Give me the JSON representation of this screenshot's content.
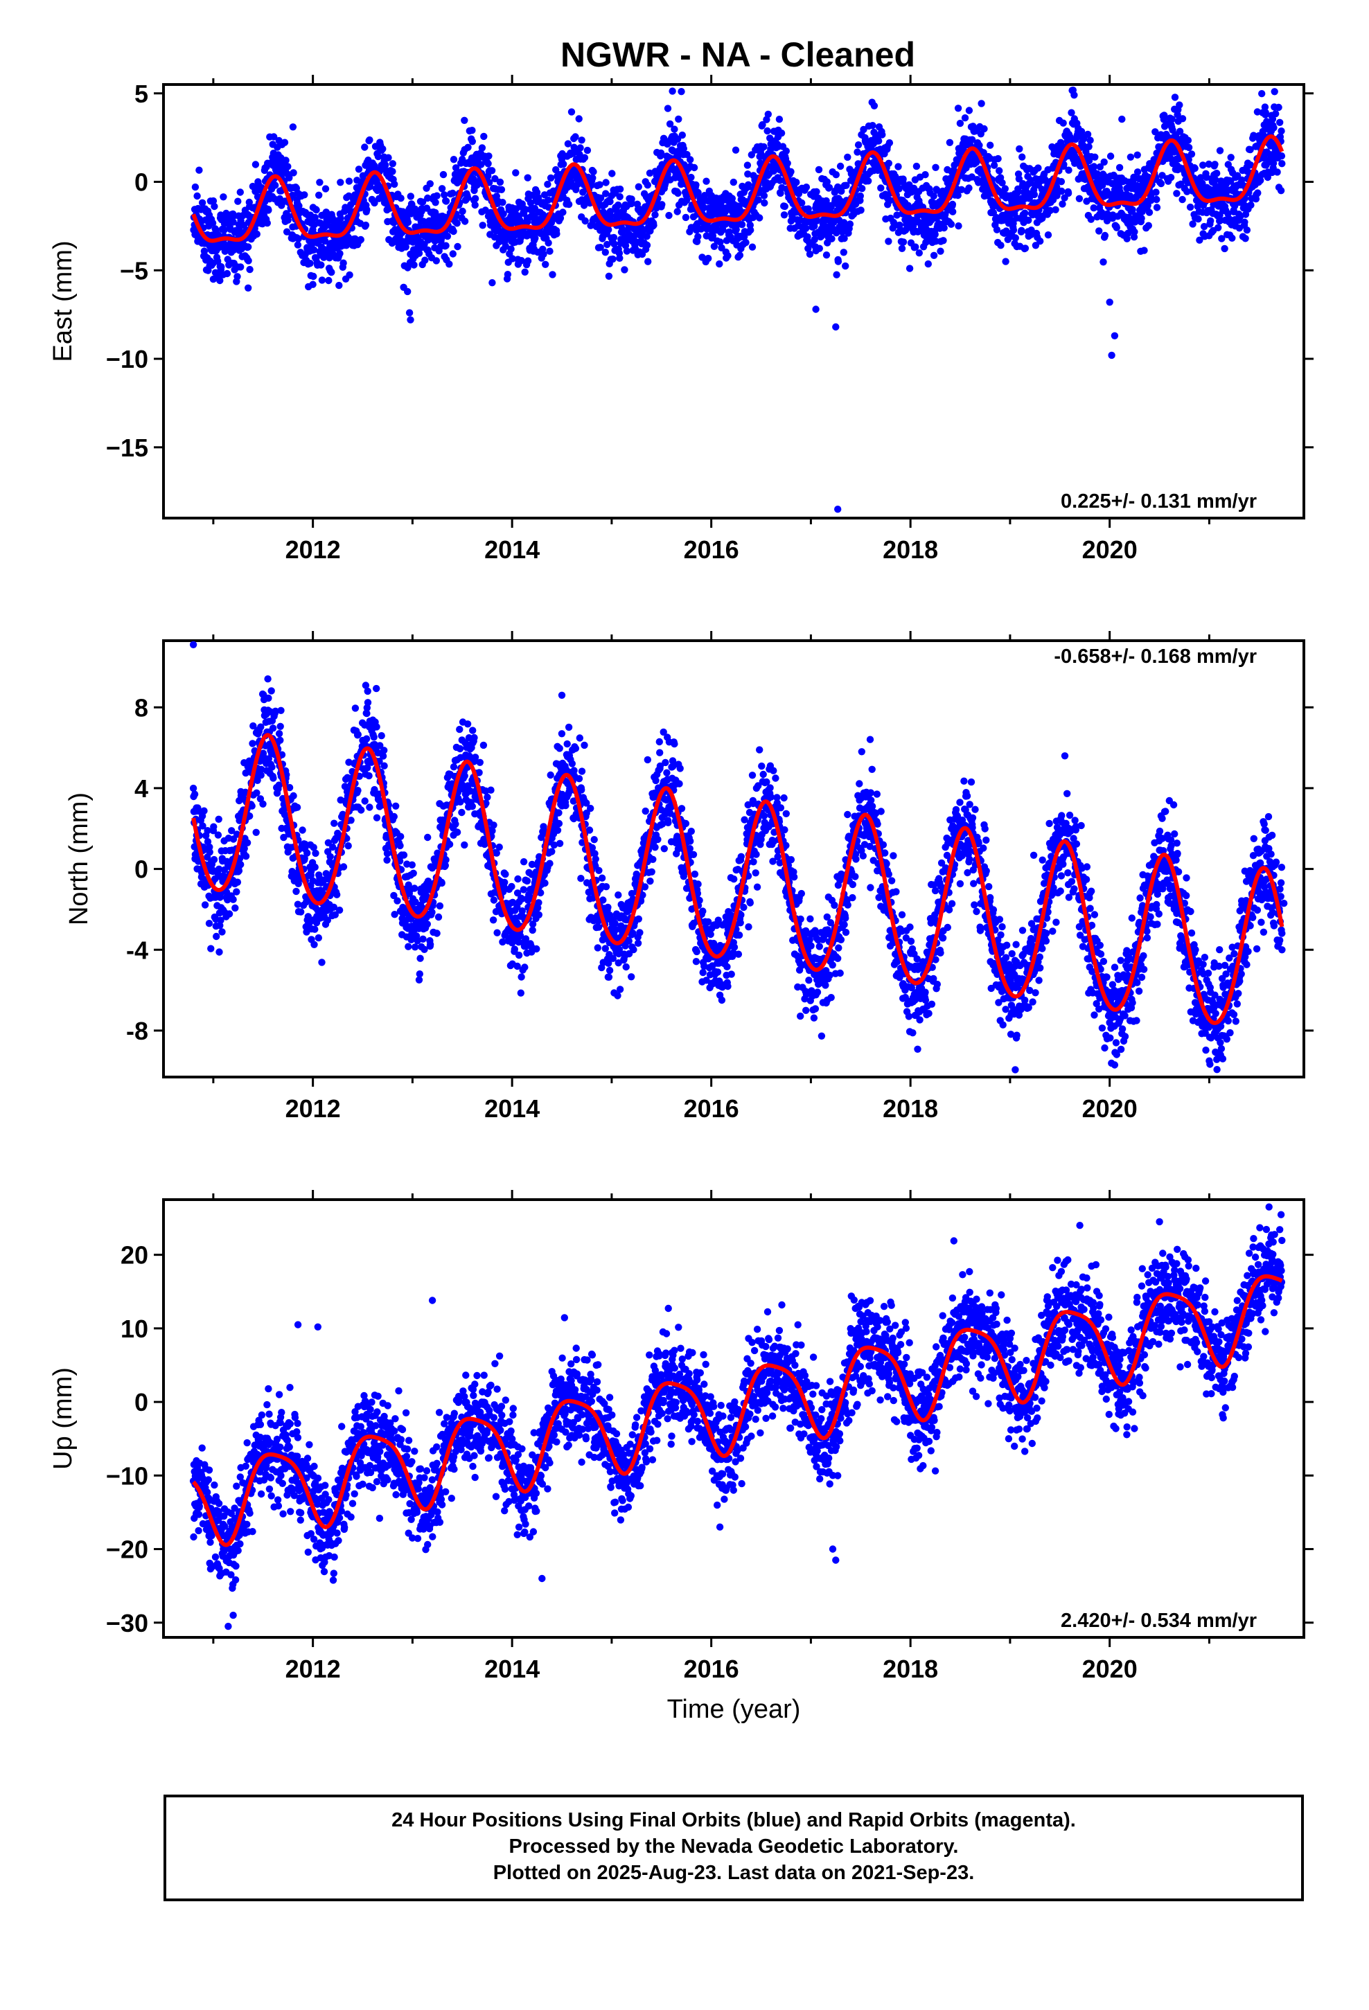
{
  "title": "NGWR  - NA - Cleaned",
  "colors": {
    "final_orbits": "#0000ff",
    "model_fit": "#ff0000",
    "frame": "#000000"
  },
  "x_axis_label": "Time (year)",
  "footer": {
    "line1": "24 Hour Positions Using Final Orbits (blue) and Rapid Orbits (magenta).",
    "line2": "Processed by the Nevada Geodetic Laboratory.",
    "line3": "Plotted on 2025-Aug-23. Last data on 2021-Sep-23."
  },
  "chart_data": [
    {
      "type": "scatter",
      "component": "East",
      "ylabel": "East (mm)",
      "rate_text": "0.225+/- 0.131 mm/yr",
      "rate_position": "bottom-right",
      "xlim": [
        2010.5,
        2021.95
      ],
      "ylim": [
        -19,
        5.5
      ],
      "x_ticks": [
        2012,
        2014,
        2016,
        2018,
        2020
      ],
      "y_ticks": [
        5,
        0,
        -5,
        -10,
        -15
      ],
      "y_tick_labels": [
        "5",
        "0",
        "−5",
        "−10",
        "−15"
      ],
      "grid": false,
      "points_series": "Final Orbits (blue)",
      "points_x_range": [
        2010.8,
        2021.73
      ],
      "model": {
        "offset": -1.0,
        "rate_mm_per_yr": 0.225,
        "t_ref": 2016.0,
        "annual_amp": 1.7,
        "annual_phase_peak": 0.62,
        "semiannual_amp": 0.6,
        "semiannual_phase_peak": 0.12,
        "scatter_std": 1.1
      },
      "fit_x_range": [
        2010.8,
        2021.73
      ],
      "outliers": [
        {
          "x": 2011.0,
          "y": -5.5
        },
        {
          "x": 2011.35,
          "y": -6.0
        },
        {
          "x": 2012.0,
          "y": -5.8
        },
        {
          "x": 2012.95,
          "y": -6.2
        },
        {
          "x": 2012.97,
          "y": -7.4
        },
        {
          "x": 2012.98,
          "y": -7.8
        },
        {
          "x": 2013.8,
          "y": -5.7
        },
        {
          "x": 2017.05,
          "y": -7.2
        },
        {
          "x": 2017.25,
          "y": -8.2
        },
        {
          "x": 2017.27,
          "y": -18.5
        },
        {
          "x": 2020.0,
          "y": -6.8
        },
        {
          "x": 2020.02,
          "y": -9.8
        },
        {
          "x": 2020.05,
          "y": -8.7
        },
        {
          "x": 2011.8,
          "y": 3.1
        },
        {
          "x": 2015.7,
          "y": 5.1
        }
      ]
    },
    {
      "type": "scatter",
      "component": "North",
      "ylabel": "North (mm)",
      "rate_text": "-0.658+/- 0.168 mm/yr",
      "rate_position": "top-right",
      "xlim": [
        2010.5,
        2021.95
      ],
      "ylim": [
        -10.3,
        11.3
      ],
      "x_ticks": [
        2012,
        2014,
        2016,
        2018,
        2020
      ],
      "y_ticks": [
        8,
        4,
        0,
        -4,
        -8
      ],
      "y_tick_labels": [
        "8",
        "4",
        "0",
        "-4",
        "-8"
      ],
      "grid": false,
      "points_series": "Final Orbits (blue)",
      "points_x_range": [
        2010.8,
        2021.73
      ],
      "model": {
        "offset": -0.6,
        "rate_mm_per_yr": -0.658,
        "t_ref": 2016.0,
        "annual_amp": 4.0,
        "annual_phase_peak": 0.55,
        "semiannual_amp": 0.3,
        "semiannual_phase_peak": 0.05,
        "scatter_std": 1.2
      },
      "fit_x_range": [
        2010.8,
        2021.73
      ],
      "outliers": [
        {
          "x": 2010.8,
          "y": 11.1
        },
        {
          "x": 2012.55,
          "y": 8.8
        },
        {
          "x": 2014.5,
          "y": 8.6
        },
        {
          "x": 2016.95,
          "y": -7.0
        },
        {
          "x": 2019.55,
          "y": 5.6
        },
        {
          "x": 2020.05,
          "y": -9.7
        },
        {
          "x": 2021.0,
          "y": -9.5
        },
        {
          "x": 2021.73,
          "y": -4.0
        },
        {
          "x": 2021.75,
          "y": -1.7
        }
      ]
    },
    {
      "type": "scatter",
      "component": "Up",
      "ylabel": "Up (mm)",
      "rate_text": "2.420+/- 0.534 mm/yr",
      "rate_position": "bottom-right",
      "xlim": [
        2010.5,
        2021.95
      ],
      "ylim": [
        -32,
        27.5
      ],
      "x_ticks": [
        2012,
        2014,
        2016,
        2018,
        2020
      ],
      "y_ticks": [
        20,
        10,
        0,
        -10,
        -20,
        -30
      ],
      "y_tick_labels": [
        "20",
        "10",
        "0",
        "−10",
        "−20",
        "−30"
      ],
      "grid": false,
      "points_series": "Final Orbits (blue)",
      "points_x_range": [
        2010.8,
        2021.73
      ],
      "model": {
        "offset": -1.0,
        "rate_mm_per_yr": 2.42,
        "t_ref": 2016.0,
        "annual_amp": 5.5,
        "annual_phase_peak": 0.62,
        "semiannual_amp": 1.2,
        "semiannual_phase_peak": 0.9,
        "scatter_std": 3.2
      },
      "fit_x_range": [
        2010.8,
        2021.73
      ],
      "outliers": [
        {
          "x": 2011.15,
          "y": -30.5
        },
        {
          "x": 2011.2,
          "y": -29.0
        },
        {
          "x": 2014.3,
          "y": -24.0
        },
        {
          "x": 2017.22,
          "y": -20.0
        },
        {
          "x": 2017.25,
          "y": -21.5
        },
        {
          "x": 2021.6,
          "y": 26.5
        },
        {
          "x": 2019.7,
          "y": 24.0
        },
        {
          "x": 2020.5,
          "y": 24.5
        },
        {
          "x": 2013.2,
          "y": 13.8
        },
        {
          "x": 2012.05,
          "y": 10.2
        },
        {
          "x": 2011.85,
          "y": 10.5
        }
      ]
    }
  ]
}
